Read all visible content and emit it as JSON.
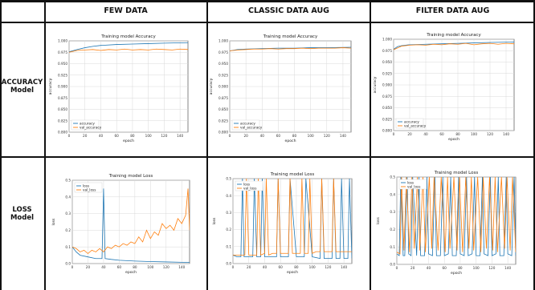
{
  "table": {
    "columns": [
      "FEW DATA",
      "CLASSIC DATA AUG",
      "FILTER DATA AUG"
    ],
    "rows": [
      {
        "line1": "ACCURACY",
        "line2": "Model"
      },
      {
        "line1": "LOSS",
        "line2": "Model"
      }
    ]
  },
  "colors": {
    "series1": "#1f77b4",
    "series2": "#ff7f0e",
    "grid": "#d9d9d9",
    "border": "#111111"
  },
  "chart_data": [
    {
      "id": "acc_few",
      "type": "line",
      "title": "Training model Accuracy",
      "xlabel": "epoch",
      "ylabel": "accuracy",
      "xlim": [
        0,
        150
      ],
      "ylim": [
        0.8,
        1.0
      ],
      "xticks": [
        "0",
        "20",
        "40",
        "60",
        "80",
        "100",
        "120",
        "140"
      ],
      "yticks": [
        "0.800",
        "0.825",
        "0.850",
        "0.875",
        "0.900",
        "0.925",
        "0.950",
        "0.975",
        "1.000"
      ],
      "grid": true,
      "legend": "bottom-left",
      "series": [
        {
          "name": "accuracy",
          "x": [
            0,
            10,
            20,
            30,
            40,
            60,
            80,
            100,
            120,
            150
          ],
          "y": [
            0.976,
            0.981,
            0.985,
            0.988,
            0.99,
            0.992,
            0.993,
            0.994,
            0.995,
            0.996
          ]
        },
        {
          "name": "val_accuracy",
          "x": [
            0,
            10,
            20,
            30,
            40,
            50,
            60,
            70,
            80,
            90,
            100,
            110,
            120,
            130,
            140,
            150
          ],
          "y": [
            0.975,
            0.979,
            0.98,
            0.981,
            0.979,
            0.981,
            0.98,
            0.982,
            0.98,
            0.981,
            0.98,
            0.982,
            0.981,
            0.98,
            0.982,
            0.981
          ]
        }
      ]
    },
    {
      "id": "acc_classic",
      "type": "line",
      "title": "Training model Accuracy",
      "xlabel": "epoch",
      "ylabel": "accuracy",
      "xlim": [
        0,
        150
      ],
      "ylim": [
        0.8,
        1.0
      ],
      "xticks": [
        "0",
        "20",
        "40",
        "60",
        "80",
        "100",
        "120",
        "140"
      ],
      "yticks": [
        "0.800",
        "0.825",
        "0.850",
        "0.875",
        "0.900",
        "0.925",
        "0.950",
        "0.975",
        "1.000"
      ],
      "grid": true,
      "legend": "bottom-left",
      "series": [
        {
          "name": "accuracy",
          "x": [
            0,
            10,
            20,
            40,
            60,
            80,
            100,
            120,
            150
          ],
          "y": [
            0.978,
            0.981,
            0.982,
            0.983,
            0.984,
            0.984,
            0.985,
            0.985,
            0.986
          ]
        },
        {
          "name": "val_accuracy",
          "x": [
            0,
            10,
            20,
            30,
            40,
            50,
            60,
            70,
            80,
            90,
            100,
            110,
            120,
            130,
            140,
            150
          ],
          "y": [
            0.978,
            0.98,
            0.981,
            0.982,
            0.982,
            0.983,
            0.982,
            0.983,
            0.983,
            0.984,
            0.983,
            0.984,
            0.984,
            0.984,
            0.985,
            0.984
          ]
        }
      ]
    },
    {
      "id": "acc_filter",
      "type": "line",
      "title": "Training model Accuracy",
      "xlabel": "epoch",
      "ylabel": "accuracy",
      "xlim": [
        0,
        150
      ],
      "ylim": [
        0.8,
        1.0
      ],
      "xticks": [
        "0",
        "20",
        "40",
        "60",
        "80",
        "100",
        "120",
        "140"
      ],
      "yticks": [
        "0.800",
        "0.825",
        "0.850",
        "0.875",
        "0.900",
        "0.925",
        "0.950",
        "0.975",
        "1.000"
      ],
      "grid": true,
      "legend": "bottom-left",
      "series": [
        {
          "name": "accuracy",
          "x": [
            0,
            5,
            10,
            20,
            40,
            60,
            80,
            100,
            120,
            150
          ],
          "y": [
            0.978,
            0.984,
            0.986,
            0.988,
            0.989,
            0.99,
            0.991,
            0.992,
            0.993,
            0.994
          ]
        },
        {
          "name": "val_accuracy",
          "x": [
            0,
            10,
            20,
            30,
            40,
            50,
            60,
            70,
            80,
            90,
            100,
            110,
            120,
            130,
            140,
            150
          ],
          "y": [
            0.977,
            0.985,
            0.987,
            0.988,
            0.987,
            0.989,
            0.988,
            0.99,
            0.989,
            0.991,
            0.988,
            0.99,
            0.991,
            0.989,
            0.991,
            0.99
          ]
        }
      ]
    },
    {
      "id": "loss_few",
      "type": "line",
      "title": "Training model Loss",
      "xlabel": "epoch",
      "ylabel": "loss",
      "xlim": [
        0,
        150
      ],
      "ylim": [
        0,
        0.5
      ],
      "xticks": [
        "0",
        "20",
        "40",
        "60",
        "80",
        "100",
        "120",
        "140"
      ],
      "yticks": [
        "0.0",
        "0.1",
        "0.2",
        "0.3",
        "0.4",
        "0.5"
      ],
      "grid": true,
      "legend": "top-left",
      "series": [
        {
          "name": "loss",
          "x": [
            0,
            5,
            10,
            20,
            30,
            38,
            40,
            42,
            50,
            60,
            80,
            100,
            120,
            140,
            150
          ],
          "y": [
            0.1,
            0.07,
            0.05,
            0.04,
            0.03,
            0.03,
            0.45,
            0.03,
            0.025,
            0.02,
            0.015,
            0.012,
            0.01,
            0.008,
            0.008
          ]
        },
        {
          "name": "val_loss",
          "x": [
            0,
            5,
            10,
            15,
            20,
            25,
            30,
            35,
            40,
            45,
            50,
            55,
            60,
            65,
            70,
            75,
            80,
            85,
            90,
            95,
            100,
            105,
            110,
            115,
            120,
            125,
            130,
            135,
            140,
            145,
            148,
            150
          ],
          "y": [
            0.1,
            0.09,
            0.07,
            0.08,
            0.06,
            0.08,
            0.07,
            0.09,
            0.07,
            0.1,
            0.09,
            0.11,
            0.1,
            0.12,
            0.11,
            0.13,
            0.12,
            0.16,
            0.13,
            0.2,
            0.15,
            0.19,
            0.17,
            0.24,
            0.21,
            0.23,
            0.2,
            0.27,
            0.24,
            0.29,
            0.45,
            0.2
          ]
        }
      ]
    },
    {
      "id": "loss_classic",
      "type": "line",
      "title": "Training model Loss",
      "xlabel": "epoch",
      "ylabel": "loss",
      "xlim": [
        0,
        150
      ],
      "ylim": [
        0,
        0.5
      ],
      "xticks": [
        "0",
        "20",
        "40",
        "60",
        "80",
        "100",
        "120",
        "140"
      ],
      "yticks": [
        "0.0",
        "0.1",
        "0.2",
        "0.3",
        "0.4",
        "0.5"
      ],
      "grid": true,
      "legend": "top-left",
      "series": [
        {
          "name": "loss",
          "x": [
            0,
            5,
            10,
            12,
            14,
            20,
            25,
            27,
            30,
            35,
            37,
            40,
            45,
            50,
            55,
            57,
            60,
            70,
            72,
            80,
            90,
            92,
            100,
            110,
            112,
            115,
            120,
            125,
            127,
            130,
            135,
            137,
            140,
            145,
            147,
            150
          ],
          "y": [
            0.05,
            0.04,
            0.04,
            0.5,
            0.04,
            0.04,
            0.04,
            0.5,
            0.04,
            0.04,
            0.5,
            0.04,
            0.04,
            0.04,
            0.04,
            0.5,
            0.04,
            0.04,
            0.5,
            0.04,
            0.04,
            0.5,
            0.04,
            0.03,
            0.5,
            0.03,
            0.03,
            0.03,
            0.5,
            0.03,
            0.03,
            0.5,
            0.03,
            0.03,
            0.5,
            0.03
          ]
        },
        {
          "name": "val_loss",
          "x": [
            0,
            5,
            10,
            15,
            17,
            20,
            25,
            30,
            32,
            35,
            40,
            42,
            45,
            50,
            55,
            57,
            60,
            65,
            70,
            72,
            75,
            80,
            85,
            87,
            90,
            95,
            97,
            100,
            105,
            110,
            112,
            115,
            120,
            125,
            127,
            130,
            135,
            140,
            145,
            150
          ],
          "y": [
            0.05,
            0.05,
            0.05,
            0.05,
            0.5,
            0.05,
            0.05,
            0.05,
            0.5,
            0.05,
            0.06,
            0.5,
            0.05,
            0.06,
            0.06,
            0.5,
            0.06,
            0.06,
            0.06,
            0.5,
            0.06,
            0.06,
            0.06,
            0.5,
            0.06,
            0.06,
            0.5,
            0.06,
            0.07,
            0.07,
            0.5,
            0.07,
            0.07,
            0.07,
            0.5,
            0.07,
            0.07,
            0.07,
            0.07,
            0.07
          ]
        }
      ]
    },
    {
      "id": "loss_filter",
      "type": "line",
      "title": "Training model Loss",
      "xlabel": "epoch",
      "ylabel": "loss",
      "xlim": [
        0,
        150
      ],
      "ylim": [
        0,
        0.5
      ],
      "xticks": [
        "0",
        "20",
        "40",
        "60",
        "80",
        "100",
        "120",
        "140"
      ],
      "yticks": [
        "0.0",
        "0.1",
        "0.2",
        "0.3",
        "0.4",
        "0.5"
      ],
      "grid": true,
      "legend": "top-left",
      "series": [
        {
          "name": "loss",
          "x": [
            0,
            3,
            5,
            8,
            10,
            13,
            15,
            18,
            20,
            25,
            28,
            30,
            35,
            38,
            40,
            45,
            48,
            50,
            55,
            58,
            60,
            65,
            68,
            70,
            75,
            78,
            80,
            85,
            88,
            90,
            95,
            98,
            100,
            105,
            108,
            110,
            115,
            118,
            120,
            125,
            128,
            130,
            135,
            138,
            140,
            145,
            148,
            150
          ],
          "y": [
            0.06,
            0.05,
            0.5,
            0.05,
            0.05,
            0.5,
            0.06,
            0.05,
            0.5,
            0.05,
            0.5,
            0.05,
            0.05,
            0.5,
            0.06,
            0.05,
            0.5,
            0.05,
            0.05,
            0.5,
            0.05,
            0.06,
            0.5,
            0.05,
            0.05,
            0.5,
            0.06,
            0.05,
            0.5,
            0.05,
            0.06,
            0.5,
            0.05,
            0.05,
            0.5,
            0.06,
            0.05,
            0.5,
            0.05,
            0.06,
            0.5,
            0.05,
            0.05,
            0.5,
            0.06,
            0.05,
            0.5,
            0.05
          ]
        },
        {
          "name": "val_loss",
          "x": [
            0,
            4,
            6,
            9,
            12,
            16,
            19,
            22,
            26,
            29,
            33,
            36,
            41,
            44,
            47,
            52,
            56,
            61,
            64,
            67,
            72,
            76,
            79,
            83,
            87,
            91,
            94,
            97,
            102,
            106,
            109,
            113,
            117,
            121,
            124,
            127,
            132,
            136,
            139,
            143,
            146,
            150
          ],
          "y": [
            0.07,
            0.06,
            0.5,
            0.08,
            0.5,
            0.07,
            0.5,
            0.09,
            0.5,
            0.08,
            0.5,
            0.07,
            0.5,
            0.09,
            0.5,
            0.08,
            0.5,
            0.07,
            0.5,
            0.09,
            0.5,
            0.08,
            0.5,
            0.07,
            0.5,
            0.09,
            0.5,
            0.08,
            0.5,
            0.07,
            0.5,
            0.09,
            0.5,
            0.08,
            0.5,
            0.07,
            0.5,
            0.09,
            0.5,
            0.08,
            0.5,
            0.07
          ]
        }
      ]
    }
  ]
}
